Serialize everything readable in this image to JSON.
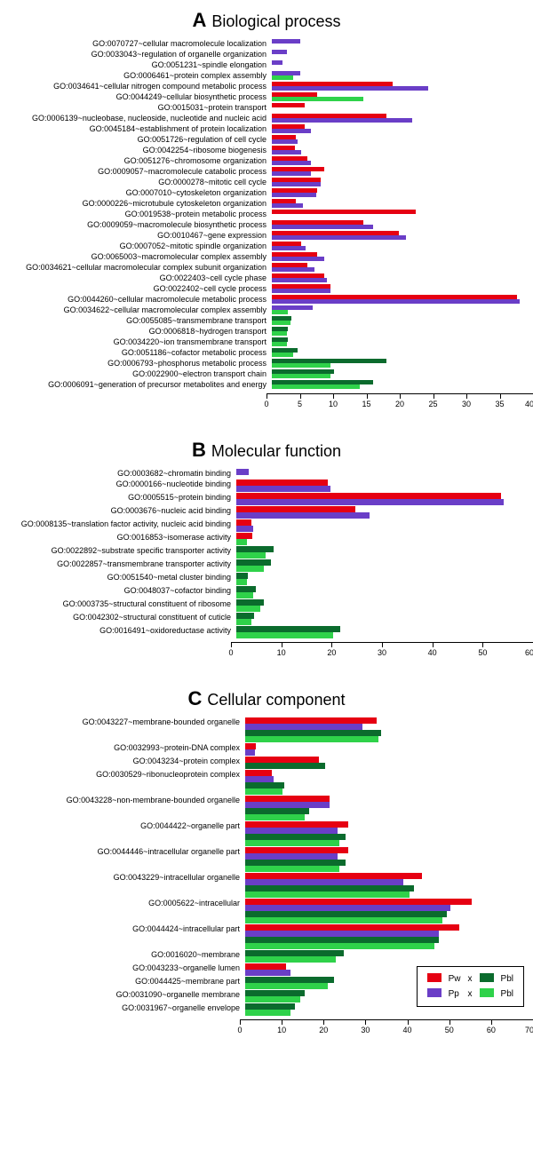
{
  "colors": {
    "Pw": "#e60012",
    "Pp": "#6a3ec7",
    "Pbl_dark": "#0b6b2d",
    "Pbl_light": "#2fd24a",
    "axis": "#000000"
  },
  "legend": {
    "row1": {
      "left_swatch": "Pw",
      "left_label": "Pw",
      "mid": "x",
      "right_swatch": "Pbl_dark",
      "right_label": "Pbl"
    },
    "row2": {
      "left_swatch": "Pp",
      "left_label": "Pp",
      "mid": "x",
      "right_swatch": "Pbl_light",
      "right_label": "Pbl"
    }
  },
  "panels": [
    {
      "id": "A",
      "letter": "A",
      "title": "Biological process",
      "xmax": 40,
      "tick_step": 5,
      "unit": "%",
      "label_width": 300,
      "rows": [
        {
          "label": "GO:0070727~cellular macromolecule localization",
          "series": [
            {
              "c": "Pp",
              "v": 4.3
            }
          ]
        },
        {
          "label": "GO:0033043~regulation of organelle organization",
          "series": [
            {
              "c": "Pp",
              "v": 2.3
            }
          ]
        },
        {
          "label": "GO:0051231~spindle elongation",
          "series": [
            {
              "c": "Pp",
              "v": 1.7
            }
          ]
        },
        {
          "label": "GO:0006461~protein complex assembly",
          "series": [
            {
              "c": "Pp",
              "v": 4.3
            },
            {
              "c": "Pbl_light",
              "v": 3.3
            }
          ]
        },
        {
          "label": "GO:0034641~cellular nitrogen compound metabolic process",
          "series": [
            {
              "c": "Pw",
              "v": 18.5
            },
            {
              "c": "Pp",
              "v": 24.0
            }
          ]
        },
        {
          "label": "GO:0044249~cellular biosynthetic process",
          "series": [
            {
              "c": "Pw",
              "v": 7.0
            },
            {
              "c": "Pbl_light",
              "v": 14.0
            }
          ]
        },
        {
          "label": "GO:0015031~protein transport",
          "series": [
            {
              "c": "Pw",
              "v": 5.0
            }
          ]
        },
        {
          "label": "GO:0006139~nucleobase, nucleoside, nucleotide and nucleic acid",
          "series": [
            {
              "c": "Pw",
              "v": 17.5
            },
            {
              "c": "Pp",
              "v": 21.5
            }
          ]
        },
        {
          "label": "GO:0045184~establishment of protein localization",
          "series": [
            {
              "c": "Pw",
              "v": 5.0
            },
            {
              "c": "Pp",
              "v": 6.0
            }
          ]
        },
        {
          "label": "GO:0051726~regulation of cell cycle",
          "series": [
            {
              "c": "Pw",
              "v": 3.7
            },
            {
              "c": "Pp",
              "v": 4.0
            }
          ]
        },
        {
          "label": "GO:0042254~ribosome biogenesis",
          "series": [
            {
              "c": "Pw",
              "v": 3.5
            },
            {
              "c": "Pp",
              "v": 4.5
            }
          ]
        },
        {
          "label": "GO:0051276~chromosome organization",
          "series": [
            {
              "c": "Pw",
              "v": 5.5
            },
            {
              "c": "Pp",
              "v": 6.0
            }
          ]
        },
        {
          "label": "GO:0009057~macromolecule catabolic process",
          "series": [
            {
              "c": "Pw",
              "v": 8.0
            },
            {
              "c": "Pp",
              "v": 6.0
            }
          ]
        },
        {
          "label": "GO:0000278~mitotic cell cycle",
          "series": [
            {
              "c": "Pw",
              "v": 7.5
            },
            {
              "c": "Pp",
              "v": 7.5
            }
          ]
        },
        {
          "label": "GO:0007010~cytoskeleton organization",
          "series": [
            {
              "c": "Pw",
              "v": 7.0
            },
            {
              "c": "Pp",
              "v": 6.8
            }
          ]
        },
        {
          "label": "GO:0000226~microtubule cytoskeleton organization",
          "series": [
            {
              "c": "Pw",
              "v": 3.7
            },
            {
              "c": "Pp",
              "v": 4.7
            }
          ]
        },
        {
          "label": "GO:0019538~protein metabolic process",
          "series": [
            {
              "c": "Pw",
              "v": 22.0
            }
          ]
        },
        {
          "label": "GO:0009059~macromolecule biosynthetic process",
          "series": [
            {
              "c": "Pw",
              "v": 14.0
            },
            {
              "c": "Pp",
              "v": 15.5
            }
          ]
        },
        {
          "label": "GO:0010467~gene expression",
          "series": [
            {
              "c": "Pw",
              "v": 19.5
            },
            {
              "c": "Pp",
              "v": 20.5
            }
          ]
        },
        {
          "label": "GO:0007052~mitotic spindle organization",
          "series": [
            {
              "c": "Pw",
              "v": 4.5
            },
            {
              "c": "Pp",
              "v": 5.2
            }
          ]
        },
        {
          "label": "GO:0065003~macromolecular complex assembly",
          "series": [
            {
              "c": "Pw",
              "v": 7.0
            },
            {
              "c": "Pp",
              "v": 8.0
            }
          ]
        },
        {
          "label": "GO:0034621~cellular macromolecular complex subunit organization",
          "series": [
            {
              "c": "Pw",
              "v": 5.5
            },
            {
              "c": "Pp",
              "v": 6.5
            }
          ]
        },
        {
          "label": "GO:0022403~cell cycle phase",
          "series": [
            {
              "c": "Pw",
              "v": 8.0
            },
            {
              "c": "Pp",
              "v": 8.5
            }
          ]
        },
        {
          "label": "GO:0022402~cell cycle process",
          "series": [
            {
              "c": "Pw",
              "v": 9.0
            },
            {
              "c": "Pp",
              "v": 9.0
            }
          ]
        },
        {
          "label": "GO:0044260~cellular macromolecule metabolic process",
          "series": [
            {
              "c": "Pw",
              "v": 37.5
            },
            {
              "c": "Pp",
              "v": 38.0
            }
          ]
        },
        {
          "label": "GO:0034622~cellular macromolecular complex assembly",
          "series": [
            {
              "c": "Pp",
              "v": 6.2
            },
            {
              "c": "Pbl_light",
              "v": 2.5
            }
          ]
        },
        {
          "label": "GO:0055085~transmembrane transport",
          "series": [
            {
              "c": "Pbl_dark",
              "v": 3.0
            },
            {
              "c": "Pbl_light",
              "v": 2.8
            }
          ]
        },
        {
          "label": "GO:0006818~hydrogen transport",
          "series": [
            {
              "c": "Pbl_dark",
              "v": 2.5
            },
            {
              "c": "Pbl_light",
              "v": 2.3
            }
          ]
        },
        {
          "label": "GO:0034220~ion transmembrane transport",
          "series": [
            {
              "c": "Pbl_dark",
              "v": 2.5
            },
            {
              "c": "Pbl_light",
              "v": 2.3
            }
          ]
        },
        {
          "label": "GO:0051186~cofactor metabolic process",
          "series": [
            {
              "c": "Pbl_dark",
              "v": 4.0
            },
            {
              "c": "Pbl_light",
              "v": 3.3
            }
          ]
        },
        {
          "label": "GO:0006793~phosphorus metabolic process",
          "series": [
            {
              "c": "Pbl_dark",
              "v": 17.5
            },
            {
              "c": "Pbl_light",
              "v": 9.0
            }
          ]
        },
        {
          "label": "GO:0022900~electron transport chain",
          "series": [
            {
              "c": "Pbl_dark",
              "v": 9.5
            },
            {
              "c": "Pbl_light",
              "v": 9.0
            }
          ]
        },
        {
          "label": "GO:0006091~generation of precursor metabolites and energy",
          "series": [
            {
              "c": "Pbl_dark",
              "v": 15.5
            },
            {
              "c": "Pbl_light",
              "v": 13.5
            }
          ]
        }
      ]
    },
    {
      "id": "B",
      "letter": "B",
      "title": "Molecular function",
      "xmax": 60,
      "tick_step": 10,
      "unit": "%",
      "label_width": 260,
      "bar_tall": true,
      "rows": [
        {
          "label": "GO:0003682~chromatin binding",
          "series": [
            {
              "c": "Pp",
              "v": 2.5
            }
          ]
        },
        {
          "label": "GO:0000166~nucleotide binding",
          "series": [
            {
              "c": "Pw",
              "v": 18.5
            },
            {
              "c": "Pp",
              "v": 19.0
            }
          ]
        },
        {
          "label": "GO:0005515~protein binding",
          "series": [
            {
              "c": "Pw",
              "v": 53.5
            },
            {
              "c": "Pp",
              "v": 54.0
            }
          ]
        },
        {
          "label": "GO:0003676~nucleic acid binding",
          "series": [
            {
              "c": "Pw",
              "v": 24.0
            },
            {
              "c": "Pp",
              "v": 27.0
            }
          ]
        },
        {
          "label": "GO:0008135~translation factor activity, nucleic acid binding",
          "series": [
            {
              "c": "Pw",
              "v": 3.0
            },
            {
              "c": "Pp",
              "v": 3.4
            }
          ]
        },
        {
          "label": "GO:0016853~isomerase activity",
          "series": [
            {
              "c": "Pw",
              "v": 3.2
            },
            {
              "c": "Pbl_light",
              "v": 2.2
            }
          ]
        },
        {
          "label": "GO:0022892~substrate specific transporter activity",
          "series": [
            {
              "c": "Pbl_dark",
              "v": 7.5
            },
            {
              "c": "Pbl_light",
              "v": 6.0
            }
          ]
        },
        {
          "label": "GO:0022857~transmembrane transporter activity",
          "series": [
            {
              "c": "Pbl_dark",
              "v": 7.0
            },
            {
              "c": "Pbl_light",
              "v": 5.5
            }
          ]
        },
        {
          "label": "GO:0051540~metal cluster binding",
          "series": [
            {
              "c": "Pbl_dark",
              "v": 2.4
            },
            {
              "c": "Pbl_light",
              "v": 2.2
            }
          ]
        },
        {
          "label": "GO:0048037~cofactor binding",
          "series": [
            {
              "c": "Pbl_dark",
              "v": 4.0
            },
            {
              "c": "Pbl_light",
              "v": 3.4
            }
          ]
        },
        {
          "label": "GO:0003735~structural constituent of ribosome",
          "series": [
            {
              "c": "Pbl_dark",
              "v": 5.5
            },
            {
              "c": "Pbl_light",
              "v": 4.8
            }
          ]
        },
        {
          "label": "GO:0042302~structural constituent of cuticle",
          "series": [
            {
              "c": "Pbl_dark",
              "v": 3.6
            },
            {
              "c": "Pbl_light",
              "v": 3.0
            }
          ]
        },
        {
          "label": "GO:0016491~oxidoreductase activity",
          "series": [
            {
              "c": "Pbl_dark",
              "v": 21.0
            },
            {
              "c": "Pbl_light",
              "v": 19.5
            }
          ]
        }
      ]
    },
    {
      "id": "C",
      "letter": "C",
      "title": "Cellular component",
      "xmax": 70,
      "tick_step": 10,
      "unit": "%",
      "label_width": 270,
      "bar_tall": true,
      "legend_here": true,
      "rows": [
        {
          "label": "GO:0043227~membrane-bounded organelle",
          "series": [
            {
              "c": "Pw",
              "v": 32.0
            },
            {
              "c": "Pp",
              "v": 28.5
            },
            {
              "c": "Pbl_dark",
              "v": 33.0
            },
            {
              "c": "Pbl_light",
              "v": 32.5
            }
          ]
        },
        {
          "label": "GO:0032993~protein-DNA complex",
          "series": [
            {
              "c": "Pw",
              "v": 2.5
            },
            {
              "c": "Pp",
              "v": 2.3
            }
          ]
        },
        {
          "label": "GO:0043234~protein complex",
          "series": [
            {
              "c": "Pw",
              "v": 18.0
            },
            {
              "c": "Pbl_dark",
              "v": 19.5
            }
          ]
        },
        {
          "label": "GO:0030529~ribonucleoprotein complex",
          "series": [
            {
              "c": "Pw",
              "v": 6.5
            },
            {
              "c": "Pp",
              "v": 7.0
            },
            {
              "c": "Pbl_dark",
              "v": 9.5
            },
            {
              "c": "Pbl_light",
              "v": 9.0
            }
          ]
        },
        {
          "label": "GO:0043228~non-membrane-bounded organelle",
          "series": [
            {
              "c": "Pw",
              "v": 20.5
            },
            {
              "c": "Pp",
              "v": 20.5
            },
            {
              "c": "Pbl_dark",
              "v": 15.5
            },
            {
              "c": "Pbl_light",
              "v": 14.5
            }
          ]
        },
        {
          "label": "GO:0044422~organelle part",
          "series": [
            {
              "c": "Pw",
              "v": 25.0
            },
            {
              "c": "Pp",
              "v": 22.5
            },
            {
              "c": "Pbl_dark",
              "v": 24.5
            },
            {
              "c": "Pbl_light",
              "v": 23.0
            }
          ]
        },
        {
          "label": "GO:0044446~intracellular organelle part",
          "series": [
            {
              "c": "Pw",
              "v": 25.0
            },
            {
              "c": "Pp",
              "v": 22.5
            },
            {
              "c": "Pbl_dark",
              "v": 24.5
            },
            {
              "c": "Pbl_light",
              "v": 23.0
            }
          ]
        },
        {
          "label": "GO:0043229~intracellular organelle",
          "series": [
            {
              "c": "Pw",
              "v": 43.0
            },
            {
              "c": "Pp",
              "v": 38.5
            },
            {
              "c": "Pbl_dark",
              "v": 41.0
            },
            {
              "c": "Pbl_light",
              "v": 40.0
            }
          ]
        },
        {
          "label": "GO:0005622~intracellular",
          "series": [
            {
              "c": "Pw",
              "v": 55.0
            },
            {
              "c": "Pp",
              "v": 50.0
            },
            {
              "c": "Pbl_dark",
              "v": 49.0
            },
            {
              "c": "Pbl_light",
              "v": 48.0
            }
          ]
        },
        {
          "label": "GO:0044424~intracellular part",
          "series": [
            {
              "c": "Pw",
              "v": 52.0
            },
            {
              "c": "Pp",
              "v": 47.0
            },
            {
              "c": "Pbl_dark",
              "v": 47.0
            },
            {
              "c": "Pbl_light",
              "v": 46.0
            }
          ]
        },
        {
          "label": "GO:0016020~membrane",
          "series": [
            {
              "c": "Pbl_dark",
              "v": 24.0
            },
            {
              "c": "Pbl_light",
              "v": 22.0
            }
          ]
        },
        {
          "label": "GO:0043233~organelle lumen",
          "series": [
            {
              "c": "Pw",
              "v": 10.0
            },
            {
              "c": "Pp",
              "v": 11.0
            }
          ]
        },
        {
          "label": "GO:0044425~membrane part",
          "series": [
            {
              "c": "Pbl_dark",
              "v": 21.5
            },
            {
              "c": "Pbl_light",
              "v": 20.0
            }
          ]
        },
        {
          "label": "GO:0031090~organelle membrane",
          "series": [
            {
              "c": "Pbl_dark",
              "v": 14.5
            },
            {
              "c": "Pbl_light",
              "v": 13.5
            }
          ]
        },
        {
          "label": "GO:0031967~organelle envelope",
          "series": [
            {
              "c": "Pbl_dark",
              "v": 12.0
            },
            {
              "c": "Pbl_light",
              "v": 11.0
            }
          ]
        }
      ]
    }
  ]
}
